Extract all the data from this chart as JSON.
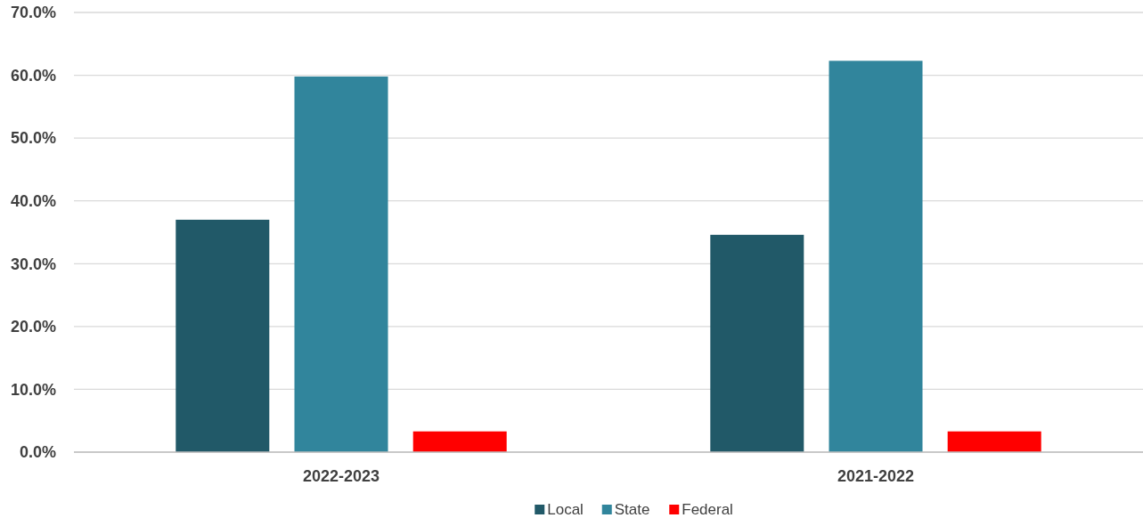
{
  "chart_data": {
    "type": "bar",
    "categories": [
      "2022-2023",
      "2021-2022"
    ],
    "series": [
      {
        "name": "Local",
        "color": "#215968",
        "values": [
          37.0,
          34.6
        ]
      },
      {
        "name": "State",
        "color": "#31859c",
        "values": [
          59.8,
          62.3
        ]
      },
      {
        "name": "Federal",
        "color": "#ff0000",
        "values": [
          3.3,
          3.3
        ]
      }
    ],
    "ylim": [
      0,
      70
    ],
    "yticks": [
      {
        "value": 0,
        "label": "0.0%"
      },
      {
        "value": 10,
        "label": "10.0%"
      },
      {
        "value": 20,
        "label": "20.0%"
      },
      {
        "value": 30,
        "label": "30.0%"
      },
      {
        "value": 40,
        "label": "40.0%"
      },
      {
        "value": 50,
        "label": "50.0%"
      },
      {
        "value": 60,
        "label": "60.0%"
      },
      {
        "value": 70,
        "label": "70.0%"
      }
    ],
    "grid": "y",
    "legend": "bottom"
  }
}
